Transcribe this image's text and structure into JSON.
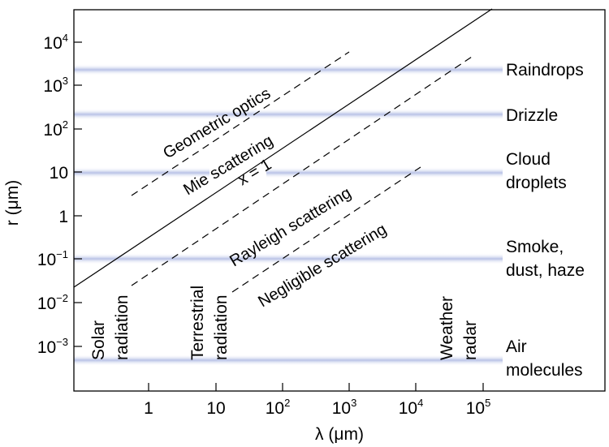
{
  "chart_data": {
    "type": "diagram",
    "xlabel": "λ (μm)",
    "ylabel": "r (μm)",
    "x_ticks": [
      {
        "base": "1",
        "exp": ""
      },
      {
        "base": "10",
        "exp": ""
      },
      {
        "base": "10",
        "exp": "2"
      },
      {
        "base": "10",
        "exp": "3"
      },
      {
        "base": "10",
        "exp": "4"
      },
      {
        "base": "10",
        "exp": "5"
      }
    ],
    "y_ticks": [
      {
        "base": "10",
        "exp": "4"
      },
      {
        "base": "10",
        "exp": "3"
      },
      {
        "base": "10",
        "exp": "2"
      },
      {
        "base": "10",
        "exp": ""
      },
      {
        "base": "1",
        "exp": ""
      },
      {
        "base": "10",
        "exp": "−1"
      },
      {
        "base": "10",
        "exp": "−2"
      },
      {
        "base": "10",
        "exp": "−3"
      }
    ],
    "particles": [
      {
        "line1": "Raindrops",
        "line2": ""
      },
      {
        "line1": "Drizzle",
        "line2": ""
      },
      {
        "line1": "Cloud",
        "line2": "droplets"
      },
      {
        "line1": "Smoke,",
        "line2": "dust, haze"
      },
      {
        "line1": "Air",
        "line2": "molecules"
      }
    ],
    "radiation": [
      {
        "line1": "Solar",
        "line2": "radiation"
      },
      {
        "line1": "Terrestrial",
        "line2": "radiation"
      },
      {
        "line1": "Weather",
        "line2": "radar"
      }
    ],
    "regimes": {
      "geometric": "Geometric optics",
      "mie": "Mie scattering",
      "x1": "x = 1",
      "rayleigh": "Rayleigh scattering",
      "negligible": "Negligible scattering"
    },
    "colors": {
      "band": "#b8c2e6",
      "line": "#000000"
    }
  }
}
